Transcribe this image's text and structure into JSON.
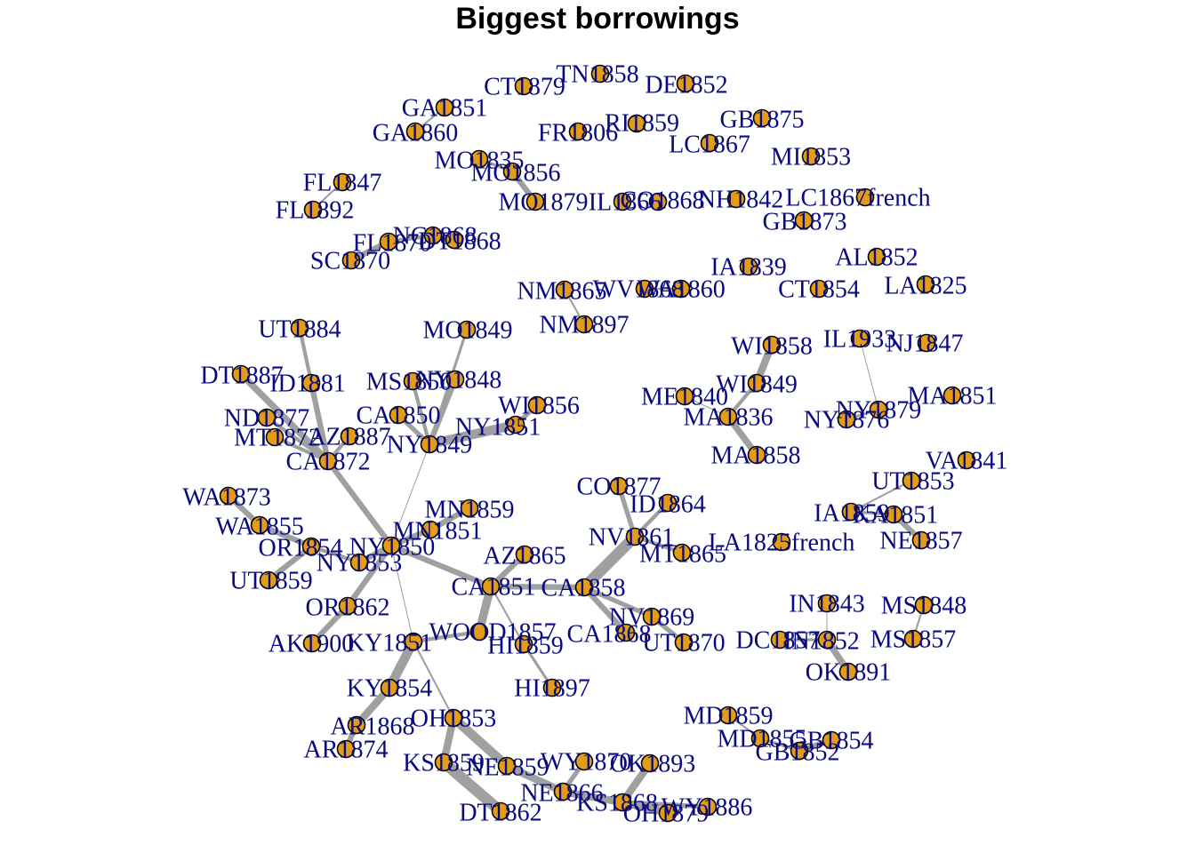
{
  "title": "Biggest borrowings",
  "colors": {
    "node_fill": "#e39c17",
    "edge": "#a0a0a0",
    "label": "#0a0a80",
    "title": "#000000"
  },
  "nodes": [
    {
      "id": "TN1858",
      "label": "TN1858"
    },
    {
      "id": "DE1852",
      "label": "DE1852"
    },
    {
      "id": "CT1879",
      "label": "CT1879"
    },
    {
      "id": "GA1851",
      "label": "GA1851"
    },
    {
      "id": "RI1859",
      "label": "RI1859"
    },
    {
      "id": "GB1875",
      "label": "GB1875"
    },
    {
      "id": "FR1806",
      "label": "FR1806"
    },
    {
      "id": "GA1860",
      "label": "GA1860"
    },
    {
      "id": "LC1867",
      "label": "LC1867"
    },
    {
      "id": "MI1853",
      "label": "MI1853"
    },
    {
      "id": "MO1835",
      "label": "MO1835"
    },
    {
      "id": "MO1856",
      "label": "MO1856"
    },
    {
      "id": "FL1847",
      "label": "FL1847"
    },
    {
      "id": "MO1879",
      "label": "MO1879"
    },
    {
      "id": "IL1866",
      "label": "IL1866"
    },
    {
      "id": "CO1868",
      "label": "CO1868"
    },
    {
      "id": "NH1842",
      "label": "NH1842"
    },
    {
      "id": "LC1867french",
      "label": "LC1867french"
    },
    {
      "id": "FL1892",
      "label": "FL1892"
    },
    {
      "id": "GB1873",
      "label": "GB1873"
    },
    {
      "id": "NC1868",
      "label": "NC1868"
    },
    {
      "id": "FL1870",
      "label": "FL1870"
    },
    {
      "id": "DT1868",
      "label": "DT1868"
    },
    {
      "id": "SC1870",
      "label": "SC1870"
    },
    {
      "id": "AL1852",
      "label": "AL1852"
    },
    {
      "id": "IA1839",
      "label": "IA1839"
    },
    {
      "id": "NM1865",
      "label": "NM1865"
    },
    {
      "id": "WV1868",
      "label": "WV1868"
    },
    {
      "id": "WA1860",
      "label": "WA1860"
    },
    {
      "id": "CT1854",
      "label": "CT1854"
    },
    {
      "id": "LA1825",
      "label": "LA1825"
    },
    {
      "id": "NM1897",
      "label": "NM1897"
    },
    {
      "id": "UT1884",
      "label": "UT1884"
    },
    {
      "id": "MO1849",
      "label": "MO1849"
    },
    {
      "id": "IL1933",
      "label": "IL1933"
    },
    {
      "id": "WI1858",
      "label": "WI1858"
    },
    {
      "id": "NJ1847",
      "label": "NJ1847"
    },
    {
      "id": "DT1887",
      "label": "DT1887"
    },
    {
      "id": "ID1881",
      "label": "ID1881"
    },
    {
      "id": "MS1850",
      "label": "MS1850"
    },
    {
      "id": "NY1848",
      "label": "NY1848"
    },
    {
      "id": "WI1849",
      "label": "WI1849"
    },
    {
      "id": "ME1840",
      "label": "ME1840"
    },
    {
      "id": "MA1851",
      "label": "MA1851"
    },
    {
      "id": "ND1877",
      "label": "ND1877"
    },
    {
      "id": "CA1850",
      "label": "CA1850"
    },
    {
      "id": "WI1856",
      "label": "WI1856"
    },
    {
      "id": "MA1836",
      "label": "MA1836"
    },
    {
      "id": "NY1879",
      "label": "NY1879"
    },
    {
      "id": "NY1876",
      "label": "NY1876"
    },
    {
      "id": "MT1872",
      "label": "MT1872"
    },
    {
      "id": "AZ1887",
      "label": "AZ1887"
    },
    {
      "id": "NY1851",
      "label": "NY1851"
    },
    {
      "id": "NY1849",
      "label": "NY1849"
    },
    {
      "id": "MA1858",
      "label": "MA1858"
    },
    {
      "id": "CA1872",
      "label": "CA1872"
    },
    {
      "id": "VA1841",
      "label": "VA1841"
    },
    {
      "id": "UT1853",
      "label": "UT1853"
    },
    {
      "id": "CO1877",
      "label": "CO1877"
    },
    {
      "id": "WA1873",
      "label": "WA1873"
    },
    {
      "id": "ID1864",
      "label": "ID1864"
    },
    {
      "id": "IA1859",
      "label": "IA1859"
    },
    {
      "id": "KA1851",
      "label": "KA1851"
    },
    {
      "id": "MN1859",
      "label": "MN1859"
    },
    {
      "id": "WA1855",
      "label": "WA1855"
    },
    {
      "id": "NV1861",
      "label": "NV1861"
    },
    {
      "id": "LA1825french",
      "label": "LA1825french"
    },
    {
      "id": "NE1857",
      "label": "NE1857"
    },
    {
      "id": "MN1851",
      "label": "MN1851"
    },
    {
      "id": "MT1865",
      "label": "MT1865"
    },
    {
      "id": "OR1854",
      "label": "OR1854"
    },
    {
      "id": "NY1850",
      "label": "NY1850"
    },
    {
      "id": "AZ1865",
      "label": "AZ1865"
    },
    {
      "id": "NY1853",
      "label": "NY1853"
    },
    {
      "id": "UT1859",
      "label": "UT1859"
    },
    {
      "id": "CA1851",
      "label": "CA1851"
    },
    {
      "id": "CA1858",
      "label": "CA1858"
    },
    {
      "id": "OR1862",
      "label": "OR1862"
    },
    {
      "id": "IN1843",
      "label": "IN1843"
    },
    {
      "id": "MS1848",
      "label": "MS1848"
    },
    {
      "id": "NV1869",
      "label": "NV1869"
    },
    {
      "id": "WOOD1857",
      "label": "WOOD1857"
    },
    {
      "id": "CA1868",
      "label": "CA1868"
    },
    {
      "id": "AK1900",
      "label": "AK1900"
    },
    {
      "id": "KY1851",
      "label": "KY1851"
    },
    {
      "id": "HI1859",
      "label": "HI1859"
    },
    {
      "id": "UT1870",
      "label": "UT1870"
    },
    {
      "id": "DC1857",
      "label": "DC1857"
    },
    {
      "id": "IN1852",
      "label": "IN1852"
    },
    {
      "id": "MS1857",
      "label": "MS1857"
    },
    {
      "id": "OK1891",
      "label": "OK1891"
    },
    {
      "id": "KY1854",
      "label": "KY1854"
    },
    {
      "id": "HI1897",
      "label": "HI1897"
    },
    {
      "id": "MD1859",
      "label": "MD1859"
    },
    {
      "id": "OH1853",
      "label": "OH1853"
    },
    {
      "id": "AR1868",
      "label": "AR1868"
    },
    {
      "id": "MD1855",
      "label": "MD1855"
    },
    {
      "id": "GB1854",
      "label": "GB1854"
    },
    {
      "id": "GB1852",
      "label": "GB1852"
    },
    {
      "id": "AR1874",
      "label": "AR1874"
    },
    {
      "id": "WY1870",
      "label": "WY1870"
    },
    {
      "id": "OK1893",
      "label": "OK1893"
    },
    {
      "id": "KS1859",
      "label": "KS1859"
    },
    {
      "id": "NE1859",
      "label": "NE1859"
    },
    {
      "id": "NE1866",
      "label": "NE1866"
    },
    {
      "id": "KS1868",
      "label": "KS1868"
    },
    {
      "id": "WY1886",
      "label": "WY1886"
    },
    {
      "id": "DT1862",
      "label": "DT1862"
    },
    {
      "id": "OH1879",
      "label": "OH1879"
    }
  ],
  "edges": [
    {
      "from": "GA1851",
      "to": "GA1860",
      "weight": 2
    },
    {
      "from": "MO1835",
      "to": "MO1856",
      "weight": 3
    },
    {
      "from": "MO1856",
      "to": "MO1879",
      "weight": 6
    },
    {
      "from": "FL1847",
      "to": "FL1892",
      "weight": 2
    },
    {
      "from": "FL1870",
      "to": "SC1870",
      "weight": 6
    },
    {
      "from": "FL1870",
      "to": "NC1868",
      "weight": 4
    },
    {
      "from": "NC1868",
      "to": "DT1868",
      "weight": 4
    },
    {
      "from": "NM1865",
      "to": "NM1897",
      "weight": 2
    },
    {
      "from": "WV1868",
      "to": "WA1860",
      "weight": 2
    },
    {
      "from": "WI1858",
      "to": "WI1849",
      "weight": 8
    },
    {
      "from": "WI1849",
      "to": "MA1836",
      "weight": 4
    },
    {
      "from": "ME1840",
      "to": "MA1836",
      "weight": 1
    },
    {
      "from": "MA1836",
      "to": "MA1858",
      "weight": 7
    },
    {
      "from": "IL1933",
      "to": "NY1879",
      "weight": 1
    },
    {
      "from": "NY1879",
      "to": "NY1876",
      "weight": 3
    },
    {
      "from": "UT1853",
      "to": "IA1859",
      "weight": 2
    },
    {
      "from": "IA1859",
      "to": "KA1851",
      "weight": 3
    },
    {
      "from": "KA1851",
      "to": "NE1857",
      "weight": 6
    },
    {
      "from": "IN1843",
      "to": "IN1852",
      "weight": 1
    },
    {
      "from": "DC1857",
      "to": "IN1852",
      "weight": 3
    },
    {
      "from": "IN1852",
      "to": "OK1891",
      "weight": 7
    },
    {
      "from": "MS1848",
      "to": "MS1857",
      "weight": 2
    },
    {
      "from": "MD1859",
      "to": "MD1855",
      "weight": 2
    },
    {
      "from": "MD1855",
      "to": "GB1852",
      "weight": 3
    },
    {
      "from": "GB1852",
      "to": "GB1854",
      "weight": 6
    },
    {
      "from": "UT1884",
      "to": "CA1872",
      "weight": 4
    },
    {
      "from": "DT1887",
      "to": "CA1872",
      "weight": 7
    },
    {
      "from": "ID1881",
      "to": "CA1872",
      "weight": 6
    },
    {
      "from": "ND1877",
      "to": "CA1872",
      "weight": 4
    },
    {
      "from": "MT1872",
      "to": "CA1872",
      "weight": 4
    },
    {
      "from": "AZ1887",
      "to": "CA1872",
      "weight": 4
    },
    {
      "from": "CA1872",
      "to": "NY1850",
      "weight": 6
    },
    {
      "from": "MO1849",
      "to": "NY1849",
      "weight": 3
    },
    {
      "from": "MS1850",
      "to": "NY1849",
      "weight": 4
    },
    {
      "from": "NY1848",
      "to": "NY1849",
      "weight": 6
    },
    {
      "from": "CA1850",
      "to": "NY1849",
      "weight": 5
    },
    {
      "from": "WI1856",
      "to": "NY1851",
      "weight": 5
    },
    {
      "from": "NY1851",
      "to": "NY1849",
      "weight": 10
    },
    {
      "from": "NY1849",
      "to": "NY1850",
      "weight": 1
    },
    {
      "from": "WA1873",
      "to": "WA1855",
      "weight": 6
    },
    {
      "from": "WA1855",
      "to": "OR1854",
      "weight": 6
    },
    {
      "from": "OR1854",
      "to": "NY1853",
      "weight": 4
    },
    {
      "from": "UT1859",
      "to": "OR1854",
      "weight": 6
    },
    {
      "from": "NY1853",
      "to": "NY1850",
      "weight": 6
    },
    {
      "from": "MN1859",
      "to": "MN1851",
      "weight": 6
    },
    {
      "from": "MN1851",
      "to": "NY1850",
      "weight": 6
    },
    {
      "from": "OR1862",
      "to": "NY1850",
      "weight": 6
    },
    {
      "from": "AK1900",
      "to": "OR1862",
      "weight": 6
    },
    {
      "from": "NY1850",
      "to": "CA1851",
      "weight": 6
    },
    {
      "from": "NY1850",
      "to": "KY1851",
      "weight": 1
    },
    {
      "from": "AZ1865",
      "to": "CA1851",
      "weight": 6
    },
    {
      "from": "CA1851",
      "to": "WOOD1857",
      "weight": 9
    },
    {
      "from": "CA1851",
      "to": "CA1858",
      "weight": 6
    },
    {
      "from": "CA1851",
      "to": "HI1859",
      "weight": 2
    },
    {
      "from": "HI1859",
      "to": "HI1897",
      "weight": 3
    },
    {
      "from": "CO1877",
      "to": "NV1861",
      "weight": 5
    },
    {
      "from": "ID1864",
      "to": "NV1861",
      "weight": 4
    },
    {
      "from": "NV1861",
      "to": "MT1865",
      "weight": 4
    },
    {
      "from": "NV1861",
      "to": "CA1858",
      "weight": 12
    },
    {
      "from": "CA1858",
      "to": "NV1869",
      "weight": 5
    },
    {
      "from": "CA1858",
      "to": "CA1868",
      "weight": 6
    },
    {
      "from": "NV1869",
      "to": "UT1870",
      "weight": 5
    },
    {
      "from": "WOOD1857",
      "to": "KY1851",
      "weight": 4
    },
    {
      "from": "KY1851",
      "to": "KY1854",
      "weight": 10
    },
    {
      "from": "KY1854",
      "to": "AR1868",
      "weight": 8
    },
    {
      "from": "AR1868",
      "to": "AR1874",
      "weight": 6
    },
    {
      "from": "KY1851",
      "to": "OH1853",
      "weight": 2
    },
    {
      "from": "OH1853",
      "to": "KS1859",
      "weight": 8
    },
    {
      "from": "OH1853",
      "to": "NE1859",
      "weight": 10
    },
    {
      "from": "KS1859",
      "to": "DT1862",
      "weight": 12
    },
    {
      "from": "NE1859",
      "to": "NE1866",
      "weight": 8
    },
    {
      "from": "NE1866",
      "to": "WY1870",
      "weight": 5
    },
    {
      "from": "NE1866",
      "to": "KS1868",
      "weight": 8
    },
    {
      "from": "OK1893",
      "to": "KS1868",
      "weight": 8
    },
    {
      "from": "KS1868",
      "to": "OH1879",
      "weight": 8
    },
    {
      "from": "KS1868",
      "to": "WY1886",
      "weight": 5
    }
  ]
}
